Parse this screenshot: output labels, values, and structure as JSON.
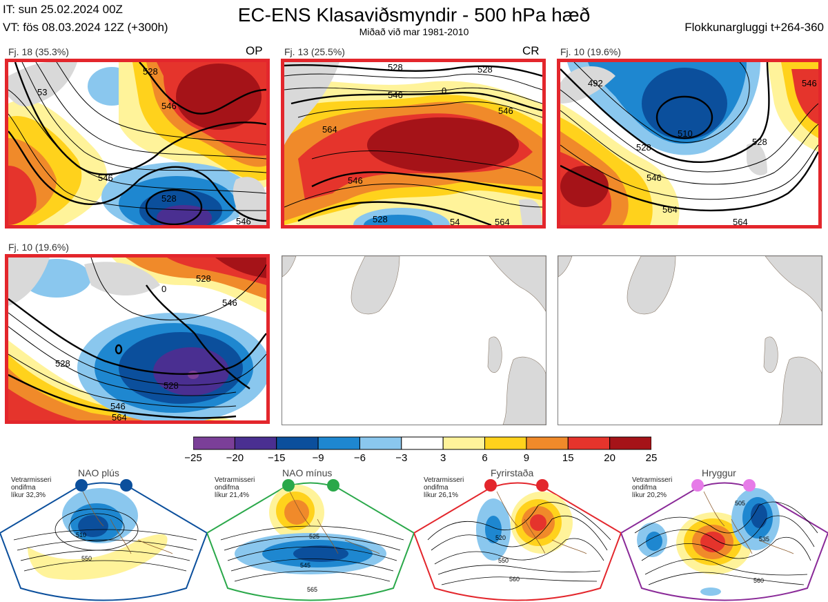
{
  "header": {
    "init_time": "IT: sun 25.02.2024 00Z",
    "valid_time": "VT: fös 08.03.2024 12Z  (+300h)",
    "title": "EC-ENS Klasaviðsmyndir - 500 hPa hæð",
    "subtitle": "Miðað við mar 1981-2010",
    "window": "Flokkunargluggi t+264-360"
  },
  "clusters": [
    {
      "label": "Fj. 18 (35.3%)",
      "tag": "OP",
      "contours": [
        "528",
        "546",
        "546",
        "528",
        "546",
        "53"
      ]
    },
    {
      "label": "Fj. 13 (25.5%)",
      "tag": "CR",
      "contours": [
        "528",
        "546",
        "528",
        "546",
        "564",
        "546",
        "528",
        "54",
        "0",
        "564"
      ]
    },
    {
      "label": "Fj. 10 (19.6%)",
      "tag": "",
      "contours": [
        "492",
        "510",
        "528",
        "546",
        "564",
        "564",
        "528",
        "546"
      ]
    },
    {
      "label": "Fj. 10 (19.6%)",
      "tag": "",
      "contours": [
        "528",
        "546",
        "564",
        "528",
        "546",
        "528",
        "0"
      ]
    }
  ],
  "colorbar": {
    "ticks": [
      "−25",
      "−20",
      "−15",
      "−9",
      "−6",
      "−3",
      "3",
      "6",
      "9",
      "15",
      "20",
      "25"
    ],
    "colors": [
      "#7b3f98",
      "#4a2f91",
      "#0b4f9c",
      "#1e87d0",
      "#8ac7ee",
      "#ffffff",
      "#fff39a",
      "#ffd21c",
      "#f08a2a",
      "#e5342c",
      "#a51318"
    ]
  },
  "regimes": [
    {
      "name": "NAO plús",
      "note": [
        "Vetrarmisseri",
        "ondifma",
        "líkur 32,3%"
      ],
      "color": "#0b4f9c",
      "dot_color": "#0b4f9c",
      "labels": [
        "510",
        "550"
      ]
    },
    {
      "name": "NAO mínus",
      "note": [
        "Vetrarmisseri",
        "ondifma",
        "líkur 21,4%"
      ],
      "color": "#2aa84a",
      "dot_color": "#2aa84a",
      "labels": [
        "525",
        "545",
        "565"
      ]
    },
    {
      "name": "Fyrirstaða",
      "note": [
        "Vetrarmisseri",
        "ondifma",
        "líkur 26,1%"
      ],
      "color": "#e3262c",
      "dot_color": "#e3262c",
      "labels": [
        "520",
        "550",
        "560"
      ]
    },
    {
      "name": "Hryggur",
      "note": [
        "Vetrarmisseri",
        "ondifma",
        "líkur 20,2%"
      ],
      "color": "#8a2a98",
      "dot_color": "#e67be8",
      "labels": [
        "505",
        "535",
        "560"
      ]
    }
  ]
}
